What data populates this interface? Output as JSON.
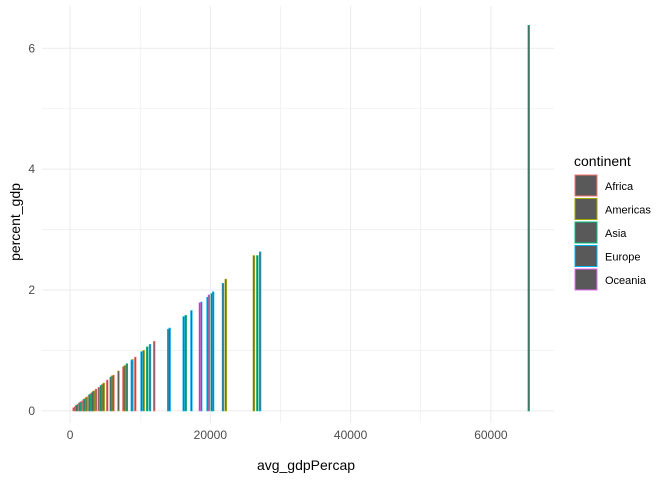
{
  "chart_data": {
    "type": "bar",
    "xlabel": "avg_gdpPercap",
    "ylabel": "percent_gdp",
    "xlim": [
      -4000,
      69000
    ],
    "ylim": [
      -0.2,
      6.7
    ],
    "x_ticks": [
      0,
      20000,
      40000,
      60000
    ],
    "x_tick_labels": [
      "0",
      "20000",
      "40000",
      "60000"
    ],
    "y_ticks": [
      0,
      2,
      4,
      6
    ],
    "y_tick_labels": [
      "0",
      "2",
      "4",
      "6"
    ],
    "grid": true,
    "legend": {
      "title": "continent",
      "position": "right",
      "entries": [
        {
          "label": "Africa",
          "color": "#F8766D"
        },
        {
          "label": "Americas",
          "color": "#A3A500"
        },
        {
          "label": "Asia",
          "color": "#00BF7D"
        },
        {
          "label": "Europe",
          "color": "#00B0F6"
        },
        {
          "label": "Oceania",
          "color": "#E76BF3"
        }
      ]
    },
    "bar_fill": "#595959",
    "series": [
      {
        "name": "Africa",
        "x": [
          500,
          700,
          900,
          1100,
          1300,
          1500,
          1700,
          1900,
          2100,
          2400,
          2700,
          3000,
          3300,
          3700,
          4100,
          4600,
          5300,
          6200,
          7600,
          9300,
          12000
        ],
        "y": [
          0.05,
          0.07,
          0.09,
          0.11,
          0.13,
          0.15,
          0.16,
          0.18,
          0.2,
          0.23,
          0.26,
          0.29,
          0.32,
          0.36,
          0.39,
          0.44,
          0.51,
          0.59,
          0.73,
          0.89,
          1.15
        ]
      },
      {
        "name": "Americas",
        "x": [
          2300,
          3400,
          4800,
          6000,
          6900,
          7800,
          8900,
          10500,
          22200,
          26200
        ],
        "y": [
          0.22,
          0.33,
          0.46,
          0.58,
          0.66,
          0.75,
          0.85,
          1.0,
          2.18,
          2.57
        ]
      },
      {
        "name": "Asia",
        "x": [
          900,
          1400,
          2000,
          2800,
          3200,
          4400,
          5800,
          8100,
          11000,
          14000,
          16500,
          20200,
          26700,
          65400
        ],
        "y": [
          0.09,
          0.13,
          0.19,
          0.27,
          0.31,
          0.42,
          0.56,
          0.78,
          1.06,
          1.35,
          1.58,
          1.94,
          2.57,
          6.38
        ]
      },
      {
        "name": "Europe",
        "x": [
          8800,
          10200,
          11400,
          14200,
          16200,
          17300,
          18700,
          19600,
          20400,
          21800,
          27100
        ],
        "y": [
          0.84,
          0.98,
          1.1,
          1.37,
          1.56,
          1.66,
          1.8,
          1.88,
          1.97,
          2.11,
          2.63
        ]
      },
      {
        "name": "Oceania",
        "x": [
          18500,
          19800
        ],
        "y": [
          1.79,
          1.92
        ]
      }
    ]
  }
}
